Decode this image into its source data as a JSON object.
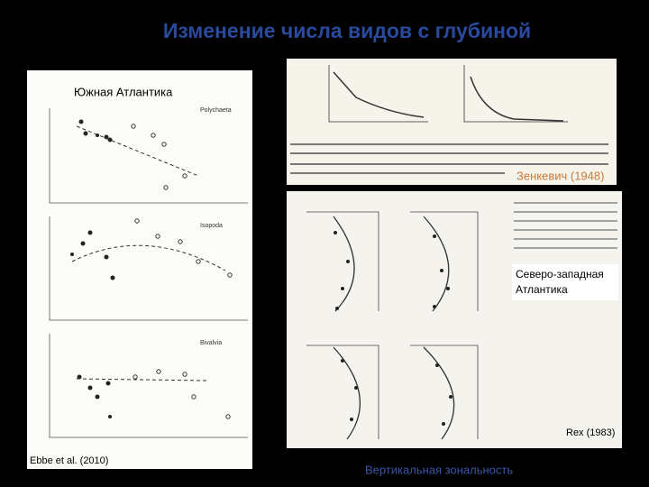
{
  "slide": {
    "title": "Изменение числа видов с глубиной",
    "panels": [
      {
        "label": "Южная Атлантика",
        "source": "Ebbe et al. (2010)",
        "subplots": [
          "Polychaeta",
          "Isopoda",
          "Bivalvia"
        ]
      },
      {
        "source": "Зенкевич (1948)"
      },
      {
        "label_lines": [
          "Северо-западная",
          "Атлантика"
        ],
        "source": "Rex (1983)"
      }
    ],
    "footer": "Вертикальная зональность"
  }
}
